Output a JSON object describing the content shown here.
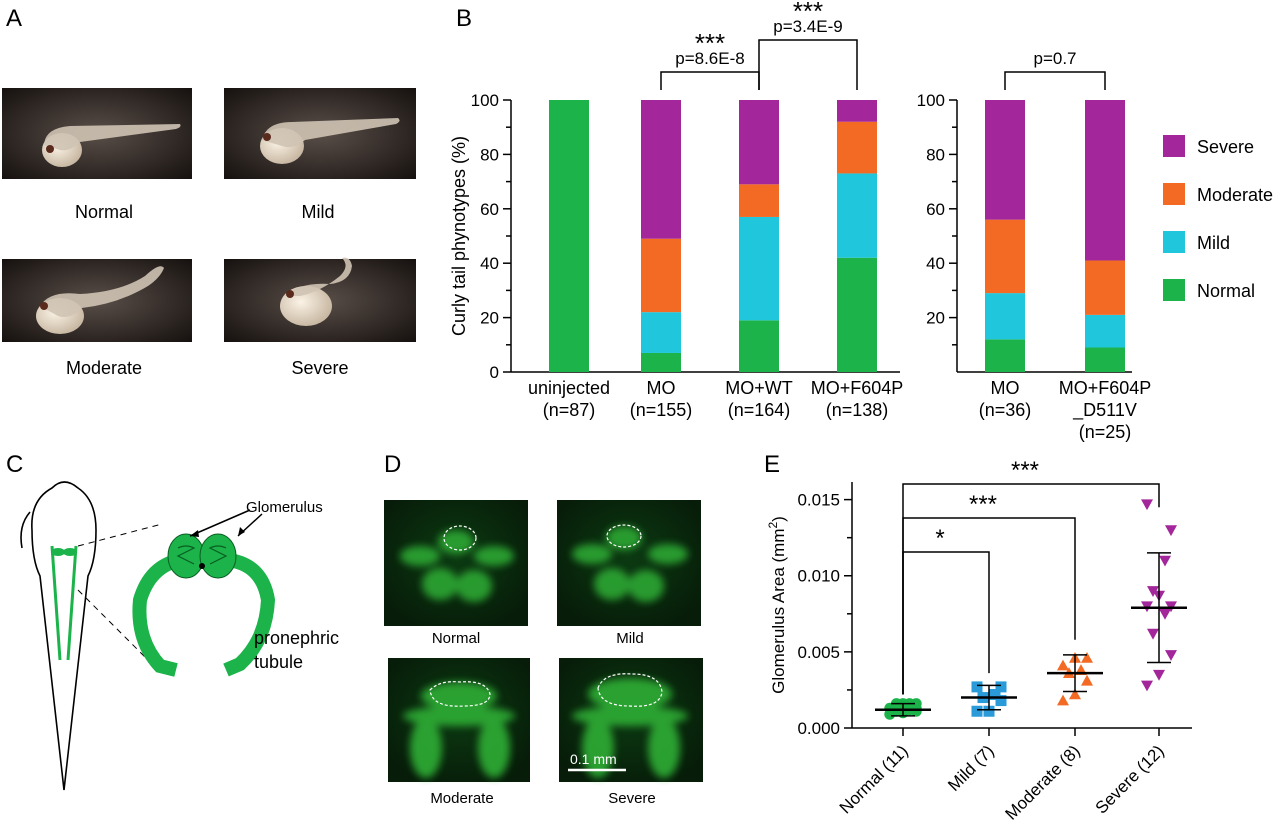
{
  "panels": {
    "A": {
      "label": "A",
      "images": [
        {
          "caption": "Normal"
        },
        {
          "caption": "Mild"
        },
        {
          "caption": "Moderate"
        },
        {
          "caption": "Severe"
        }
      ]
    },
    "B": {
      "label": "B"
    },
    "C": {
      "label": "C",
      "glomerulus_label": "Glomerulus",
      "tubule_label_1": "pronephric",
      "tubule_label_2": "tubule"
    },
    "D": {
      "label": "D",
      "images": [
        {
          "caption": "Normal"
        },
        {
          "caption": "Mild"
        },
        {
          "caption": "Moderate"
        },
        {
          "caption": "Severe"
        }
      ],
      "scale_bar": "0.1 mm"
    },
    "E": {
      "label": "E"
    }
  },
  "colors": {
    "severe": "#A3279A",
    "moderate": "#F26A23",
    "mild": "#1FC6DC",
    "normal": "#1BB34A",
    "blue": "#2A9BD8",
    "fluor": "#1F8A2C"
  },
  "chart_data": [
    {
      "type": "bar",
      "stacked": true,
      "ylabel": "Curly tail phynotypes (%)",
      "ylim": [
        0,
        100
      ],
      "yticks": [
        "0",
        "20",
        "40",
        "60",
        "80",
        "100"
      ],
      "categories": [
        {
          "line1": "uninjected",
          "line2": "(n=87)"
        },
        {
          "line1": "MO",
          "line2": "(n=155)"
        },
        {
          "line1": "MO+WT",
          "line2": "(n=164)"
        },
        {
          "line1": "MO+F604P",
          "line2": "(n=138)"
        }
      ],
      "series": [
        {
          "name": "Normal",
          "color": "#1BB34A",
          "values": [
            100,
            7,
            19,
            42
          ]
        },
        {
          "name": "Mild",
          "color": "#1FC6DC",
          "values": [
            0,
            15,
            38,
            31
          ]
        },
        {
          "name": "Moderate",
          "color": "#F26A23",
          "values": [
            0,
            27,
            12,
            19
          ]
        },
        {
          "name": "Severe",
          "color": "#A3279A",
          "values": [
            0,
            51,
            31,
            8
          ]
        }
      ],
      "comparisons": [
        {
          "from": 1,
          "to": 2,
          "stars": "***",
          "p": "p=8.6E-8"
        },
        {
          "from": 2,
          "to": 3,
          "stars": "***",
          "p": "p=3.4E-9"
        }
      ]
    },
    {
      "type": "bar",
      "stacked": true,
      "ylim": [
        0,
        100
      ],
      "yticks": [
        "20",
        "40",
        "60",
        "80",
        "100"
      ],
      "categories": [
        {
          "line1": "MO",
          "line2": "(n=36)"
        },
        {
          "line1": "MO+F604P",
          "line2": "_D511V",
          "line3": "(n=25)"
        }
      ],
      "series": [
        {
          "name": "Normal",
          "color": "#1BB34A",
          "values": [
            12,
            9
          ]
        },
        {
          "name": "Mild",
          "color": "#1FC6DC",
          "values": [
            17,
            12
          ]
        },
        {
          "name": "Moderate",
          "color": "#F26A23",
          "values": [
            27,
            20
          ]
        },
        {
          "name": "Severe",
          "color": "#A3279A",
          "values": [
            44,
            59
          ]
        }
      ],
      "comparisons": [
        {
          "from": 0,
          "to": 1,
          "stars": "",
          "p": "p=0.7"
        }
      ],
      "legend": {
        "placement": "right",
        "entries": [
          {
            "name": "Severe",
            "color": "#A3279A"
          },
          {
            "name": "Moderate",
            "color": "#F26A23"
          },
          {
            "name": "Mild",
            "color": "#1FC6DC"
          },
          {
            "name": "Normal",
            "color": "#1BB34A"
          }
        ]
      }
    },
    {
      "type": "scatter",
      "ylabel": "Glomerulus Area (mm",
      "ylabel_sup": "2",
      "ylabel_close": ")",
      "ylim": [
        0,
        0.0155
      ],
      "yticks": [
        "0.000",
        "0.005",
        "0.010",
        "0.015"
      ],
      "categories": [
        "Normal (11)",
        "Mild (7)",
        "Moderate (8)",
        "Severe (12)"
      ],
      "groups": [
        {
          "name": "Normal (11)",
          "marker": "circle",
          "color": "#1BB34A",
          "mean": 0.0012,
          "sd_low": 0.0008,
          "sd_high": 0.0016,
          "points": [
            0.0009,
            0.001,
            0.0011,
            0.0011,
            0.0012,
            0.0013,
            0.0013,
            0.0016,
            0.0016,
            0.0016,
            0.0016
          ]
        },
        {
          "name": "Mild (7)",
          "marker": "square",
          "color": "#2A9BD8",
          "mean": 0.002,
          "sd_low": 0.0012,
          "sd_high": 0.0028,
          "points": [
            0.0011,
            0.0011,
            0.0018,
            0.002,
            0.0022,
            0.0027,
            0.0027
          ]
        },
        {
          "name": "Moderate (8)",
          "marker": "triangle-up",
          "color": "#F26A23",
          "mean": 0.0036,
          "sd_low": 0.0024,
          "sd_high": 0.0048,
          "points": [
            0.0018,
            0.0022,
            0.0031,
            0.0036,
            0.0038,
            0.0041,
            0.0046,
            0.0046
          ]
        },
        {
          "name": "Severe (12)",
          "marker": "triangle-down",
          "color": "#A3279A",
          "mean": 0.0079,
          "sd_low": 0.0043,
          "sd_high": 0.0115,
          "points": [
            0.0028,
            0.0035,
            0.0048,
            0.0062,
            0.0075,
            0.008,
            0.008,
            0.0087,
            0.009,
            0.011,
            0.013,
            0.0147
          ]
        }
      ],
      "comparisons": [
        {
          "from": 0,
          "to": 1,
          "stars": "*"
        },
        {
          "from": 0,
          "to": 2,
          "stars": "***"
        },
        {
          "from": 0,
          "to": 3,
          "stars": "***"
        }
      ]
    }
  ]
}
